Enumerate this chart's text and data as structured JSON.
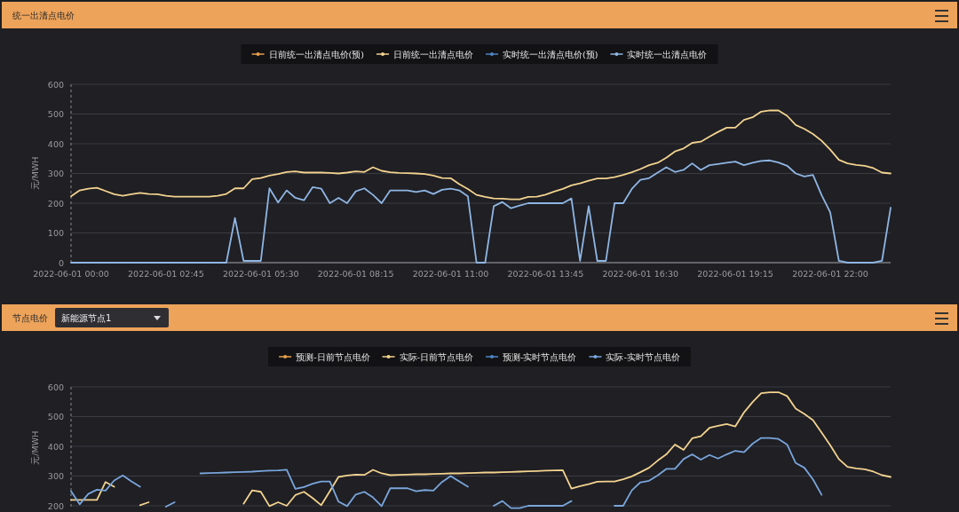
{
  "chart_data": [
    {
      "type": "line",
      "title": "统一出清点电价",
      "ylabel": "元/MWH",
      "grid": "y",
      "legend": "top",
      "categories": [
        "2022-06-01 00:00",
        null,
        null,
        null,
        null,
        null,
        null,
        null,
        null,
        null,
        null,
        "2022-06-01 02:45",
        null,
        null,
        null,
        null,
        null,
        null,
        null,
        null,
        null,
        null,
        "2022-06-01 05:30",
        null,
        null,
        null,
        null,
        null,
        null,
        null,
        null,
        null,
        null,
        "2022-06-01 08:15",
        null,
        null,
        null,
        null,
        null,
        null,
        null,
        null,
        null,
        null,
        "2022-06-01 11:00",
        null,
        null,
        null,
        null,
        null,
        null,
        null,
        null,
        null,
        null,
        "2022-06-01 13:45",
        null,
        null,
        null,
        null,
        null,
        null,
        null,
        null,
        null,
        null,
        "2022-06-01 16:30",
        null,
        null,
        null,
        null,
        null,
        null,
        null,
        null,
        null,
        null,
        "2022-06-01 19:15",
        null,
        null,
        null,
        null,
        null,
        null,
        null,
        null,
        null,
        null,
        "2022-06-01 22:00",
        null,
        null,
        null,
        null,
        null,
        null,
        null
      ],
      "ylim": [
        0,
        600
      ],
      "yticks": [
        0,
        100,
        200,
        300,
        400,
        500,
        600
      ],
      "series": [
        {
          "name": "日前统一出清点电价(预)",
          "color": "#e8a04e",
          "values": [
            null,
            null,
            null,
            null,
            null,
            null,
            null,
            null,
            null,
            null,
            null,
            null,
            null,
            null,
            null,
            null,
            null,
            null,
            null,
            null,
            null,
            null,
            null,
            null,
            null,
            null,
            null,
            null,
            null,
            null,
            null,
            null,
            null,
            null,
            null,
            null,
            null,
            null,
            null,
            null,
            null,
            null,
            null,
            null,
            null,
            null,
            null,
            null,
            null,
            null,
            null,
            null,
            null,
            null,
            null,
            null,
            null,
            null,
            null,
            null,
            null,
            null,
            null,
            null,
            null,
            null,
            null,
            null,
            null,
            null,
            null,
            null,
            null,
            null,
            null,
            null,
            null,
            null,
            null,
            null,
            null,
            null,
            null,
            null,
            null,
            null,
            null,
            null,
            null,
            null,
            null,
            null,
            null,
            null,
            null,
            null
          ]
        },
        {
          "name": "日前统一出清点电价",
          "color": "#f3d38f",
          "values": [
            223,
            243,
            249,
            252,
            241,
            230,
            225,
            230,
            235,
            231,
            230,
            225,
            222,
            222,
            222,
            222,
            222,
            225,
            231,
            250,
            250,
            281,
            285,
            293,
            298,
            305,
            307,
            303,
            303,
            303,
            302,
            300,
            303,
            307,
            305,
            321,
            309,
            304,
            302,
            301,
            300,
            298,
            293,
            285,
            284,
            264,
            248,
            228,
            221,
            216,
            215,
            213,
            213,
            221,
            222,
            229,
            239,
            248,
            260,
            267,
            276,
            283,
            283,
            288,
            295,
            304,
            315,
            328,
            336,
            353,
            374,
            384,
            403,
            407,
            424,
            440,
            454,
            454,
            480,
            489,
            508,
            512,
            512,
            494,
            463,
            450,
            433,
            410,
            380,
            346,
            334,
            329,
            326,
            318,
            303,
            300
          ]
        },
        {
          "name": "实时统一出清点电价(预)",
          "color": "#4f86c6",
          "values": [
            null,
            null,
            null,
            null,
            null,
            null,
            null,
            null,
            null,
            null,
            null,
            null,
            null,
            null,
            null,
            null,
            null,
            null,
            null,
            null,
            null,
            null,
            null,
            null,
            null,
            null,
            null,
            null,
            null,
            null,
            null,
            null,
            null,
            null,
            null,
            null,
            null,
            null,
            null,
            null,
            null,
            null,
            null,
            null,
            null,
            null,
            null,
            null,
            null,
            null,
            null,
            null,
            null,
            null,
            null,
            null,
            null,
            null,
            null,
            null,
            null,
            null,
            null,
            null,
            null,
            null,
            null,
            null,
            null,
            null,
            null,
            null,
            null,
            null,
            null,
            null,
            null,
            null,
            null,
            null,
            null,
            null,
            null,
            null,
            null,
            null,
            null,
            null,
            null,
            null,
            null,
            null,
            null,
            null,
            null,
            null
          ]
        },
        {
          "name": "实时统一出清点电价",
          "color": "#8fb6e3",
          "values": [
            0,
            0,
            0,
            0,
            0,
            0,
            0,
            0,
            0,
            0,
            0,
            0,
            0,
            0,
            0,
            0,
            0,
            0,
            0,
            150,
            6,
            6,
            6,
            250,
            202,
            243,
            218,
            210,
            254,
            249,
            200,
            218,
            200,
            240,
            250,
            228,
            200,
            243,
            243,
            243,
            238,
            243,
            231,
            245,
            249,
            243,
            223,
            0,
            0,
            190,
            204,
            183,
            192,
            200,
            200,
            200,
            200,
            200,
            216,
            6,
            190,
            6,
            6,
            200,
            200,
            248,
            279,
            284,
            303,
            321,
            305,
            312,
            334,
            312,
            328,
            332,
            336,
            340,
            328,
            336,
            342,
            344,
            337,
            326,
            300,
            290,
            295,
            227,
            169,
            6,
            0,
            0,
            0,
            0,
            6,
            185
          ]
        }
      ]
    },
    {
      "type": "line",
      "title": "节点电价",
      "ylabel": "元/MWH",
      "grid": "y",
      "legend": "top",
      "annotations": [
        "新能源节点1"
      ],
      "categories": [
        null,
        null,
        null,
        null,
        null,
        null,
        null,
        null,
        null,
        null,
        null,
        null,
        null,
        null,
        null,
        null,
        null,
        null,
        null,
        null,
        null,
        null,
        null,
        null,
        null,
        null,
        null,
        null,
        null,
        null,
        null,
        null,
        null,
        null,
        null,
        null,
        null,
        null,
        null,
        null,
        null,
        null,
        null,
        null,
        null,
        null,
        null,
        null,
        null,
        null,
        null,
        null,
        null,
        null,
        null,
        null,
        null,
        null,
        null,
        null,
        null,
        null,
        null,
        null,
        null,
        null,
        null,
        null,
        null,
        null,
        null,
        null,
        null,
        null,
        null,
        null,
        null,
        null,
        null,
        null,
        null,
        null,
        null,
        null,
        null,
        null,
        null,
        null,
        null,
        null,
        null,
        null,
        null,
        null,
        null,
        null
      ],
      "ylim": [
        190,
        600
      ],
      "yticks": [
        200,
        300,
        400,
        500,
        600
      ],
      "series": [
        {
          "name": "预测-日前节点电价",
          "color": "#e8a04e",
          "values": [
            null,
            null,
            null,
            null,
            null,
            null,
            null,
            null,
            null,
            null,
            null,
            null,
            null,
            null,
            null,
            null,
            null,
            null,
            null,
            null,
            null,
            null,
            null,
            null,
            null,
            null,
            null,
            null,
            null,
            null,
            null,
            null,
            null,
            null,
            null,
            null,
            null,
            null,
            null,
            null,
            null,
            null,
            null,
            null,
            null,
            null,
            null,
            null,
            null,
            null,
            null,
            null,
            null,
            null,
            null,
            null,
            null,
            null,
            null,
            null,
            null,
            null,
            null,
            null,
            null,
            null,
            null,
            null,
            null,
            null,
            null,
            null,
            null,
            null,
            null,
            null,
            null,
            null,
            null,
            null,
            null,
            null,
            null,
            null,
            null,
            null,
            null,
            null,
            null,
            null,
            null,
            null,
            null,
            null,
            null,
            null
          ]
        },
        {
          "name": "实际-日前节点电价",
          "color": "#f3d38f",
          "values": [
            220,
            220,
            220,
            220,
            280,
            264,
            null,
            null,
            202,
            212,
            null,
            null,
            null,
            null,
            null,
            null,
            null,
            null,
            null,
            null,
            207,
            252,
            247,
            199,
            212,
            200,
            236,
            247,
            226,
            202,
            249,
            297,
            302,
            305,
            304,
            321,
            309,
            303,
            304,
            305,
            306,
            306,
            307,
            308,
            309,
            309,
            310,
            311,
            312,
            312,
            313,
            314,
            315,
            316,
            317,
            318,
            319,
            320,
            258,
            266,
            273,
            281,
            282,
            282,
            289,
            299,
            313,
            328,
            352,
            373,
            406,
            388,
            427,
            434,
            462,
            469,
            475,
            467,
            514,
            549,
            579,
            582,
            582,
            569,
            527,
            509,
            488,
            446,
            404,
            357,
            331,
            326,
            323,
            315,
            303,
            297
          ]
        },
        {
          "name": "预测-实时节点电价",
          "color": "#4f86c6",
          "values": [
            null,
            null,
            null,
            null,
            null,
            null,
            null,
            null,
            null,
            null,
            null,
            null,
            null,
            null,
            null,
            null,
            null,
            null,
            null,
            null,
            null,
            null,
            null,
            null,
            null,
            null,
            null,
            null,
            null,
            null,
            null,
            null,
            null,
            null,
            null,
            null,
            null,
            null,
            null,
            null,
            null,
            null,
            null,
            null,
            null,
            null,
            null,
            null,
            null,
            null,
            null,
            null,
            null,
            null,
            null,
            null,
            null,
            null,
            null,
            null,
            null,
            null,
            null,
            null,
            null,
            null,
            null,
            null,
            null,
            null,
            null,
            null,
            null,
            null,
            null,
            null,
            null,
            null,
            null,
            null,
            null,
            null,
            null,
            null,
            null,
            null,
            null,
            null,
            null,
            null,
            null,
            null,
            null,
            null,
            null,
            null
          ]
        },
        {
          "name": "实际-实时节点电价",
          "color": "#7aa6dc",
          "values": [
            249,
            205,
            240,
            254,
            251,
            285,
            302,
            282,
            264,
            null,
            null,
            197,
            212,
            null,
            null,
            309,
            310,
            311,
            312,
            313,
            314,
            315,
            317,
            318,
            319,
            321,
            257,
            263,
            274,
            282,
            282,
            214,
            199,
            238,
            247,
            228,
            199,
            259,
            259,
            259,
            249,
            253,
            251,
            280,
            300,
            282,
            264,
            null,
            null,
            200,
            216,
            192,
            192,
            200,
            200,
            200,
            200,
            200,
            216,
            null,
            null,
            null,
            null,
            200,
            200,
            252,
            279,
            284,
            302,
            324,
            324,
            357,
            373,
            355,
            371,
            359,
            373,
            385,
            380,
            409,
            428,
            428,
            425,
            406,
            344,
            328,
            289,
            237,
            null,
            null,
            null,
            null,
            null,
            null,
            null,
            null
          ]
        }
      ]
    }
  ]
}
